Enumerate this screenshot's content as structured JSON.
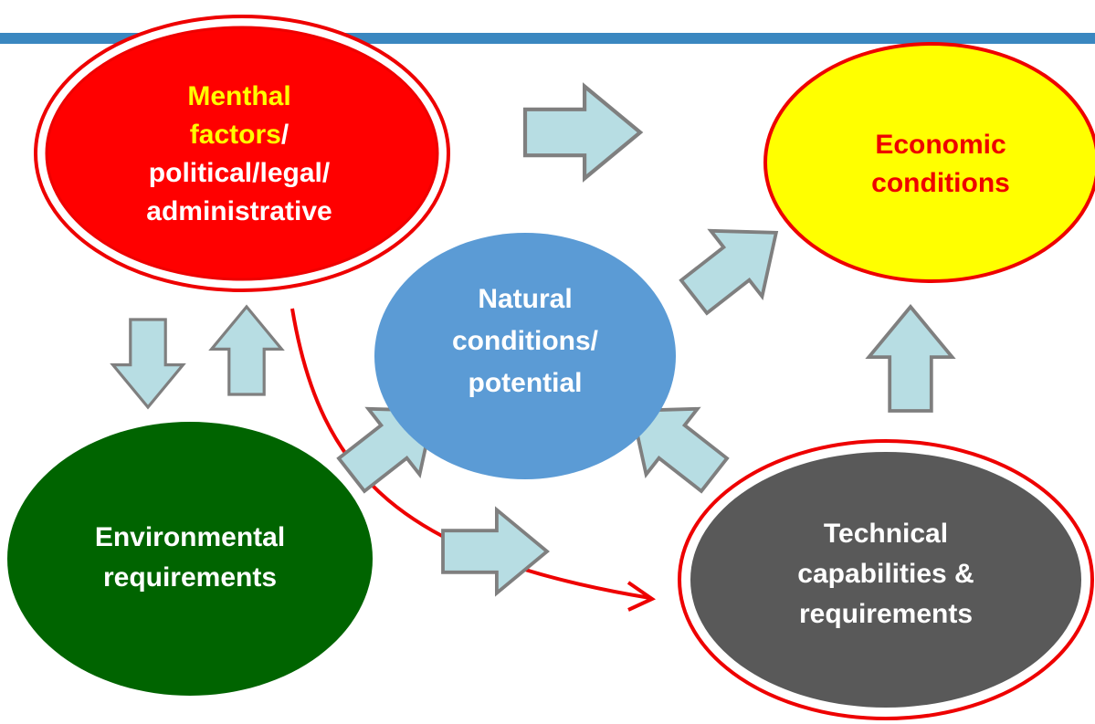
{
  "nodes": [
    {
      "lines": [
        "Menthal",
        "factors",
        "/",
        "political/legal/",
        "administrative"
      ]
    },
    {
      "lines": [
        "Economic",
        "conditions"
      ]
    },
    {
      "lines": [
        "Natural",
        "conditions/",
        "potential"
      ]
    },
    {
      "lines": [
        "Environmental",
        "requirements"
      ]
    },
    {
      "lines": [
        "Technical",
        "capabilities &",
        "requirements"
      ]
    }
  ]
}
